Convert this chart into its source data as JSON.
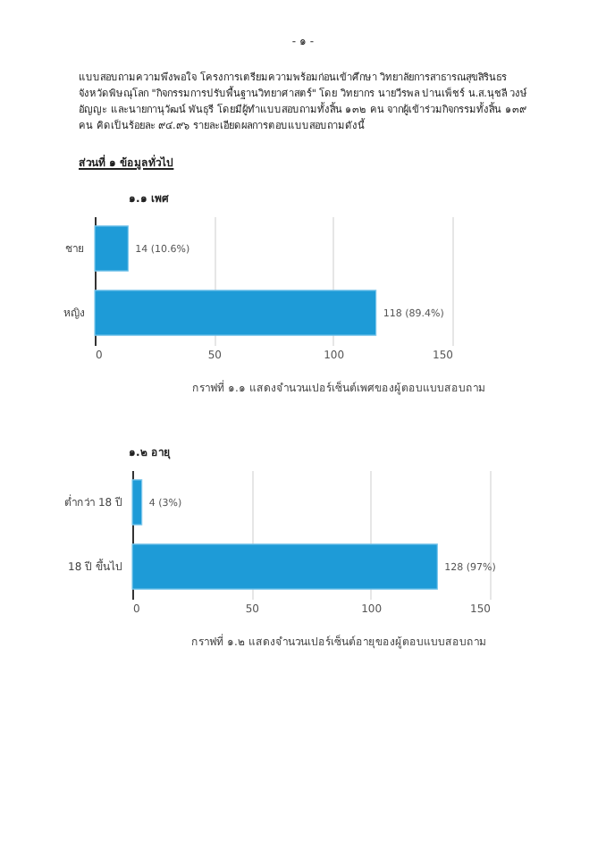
{
  "chart_data": [
    {
      "type": "bar",
      "orientation": "horizontal",
      "title": "๑.๑ เพศ",
      "categories": [
        "ชาย",
        "หญิง"
      ],
      "values": [
        14,
        118
      ],
      "value_labels": [
        "14 (10.6%)",
        "118 (89.4%)"
      ],
      "color": "#1e9bd7",
      "xlim": [
        0,
        150
      ],
      "xticks": [
        0,
        50,
        100,
        150
      ],
      "grid": "x",
      "annotations": [
        "- ๑ -",
        "แบบสอบถามความพึงพอใจ โครงการเตรียมความพร้อมก่อนเข้าศึกษา วิทยาลัยการสาธารณสุขสิรินธร จังหวัดพิษณุโลก \"กิจกรรมการปรับพื้นฐานวิทยาศาสตร์\" โดย วิทยากร นายวีรพล ปานเพ็ชร์ น.ส.นุชลี วงษ์อัญญะ และนายกานุวัฒน์ พันธุรี  โดยมีผู้ทำแบบสอบถามทั้งสิ้น ๑๓๒ คน จากผู้เข้าร่วมกิจกรรมทั้งสิ้น ๑๓๙ คน คิดเป็นร้อยละ ๙๔.๙๖ รายละเอียดผลการตอบแบบสอบถามดังนี้",
        "ส่วนที่ ๑ ข้อมูลทั่วไป",
        "กราฟที่ ๑.๑ แสดงจำนวนเปอร์เซ็นต์เพศของผู้ตอบแบบสอบถาม"
      ]
    },
    {
      "type": "bar",
      "orientation": "horizontal",
      "title": "๑.๒ อายุ",
      "categories": [
        "ต่ำกว่า 18 ปี",
        "18 ปี ขึ้นไป"
      ],
      "values": [
        4,
        128
      ],
      "value_labels": [
        "4 (3%)",
        "128 (97%)"
      ],
      "color": "#1e9bd7",
      "xlim": [
        0,
        150
      ],
      "xticks": [
        0,
        50,
        100,
        150
      ],
      "grid": "x",
      "annotations": [
        "กราฟที่ ๑.๒ แสดงจำนวนเปอร์เซ็นต์อายุของผู้ตอบแบบสอบถาม"
      ]
    }
  ]
}
